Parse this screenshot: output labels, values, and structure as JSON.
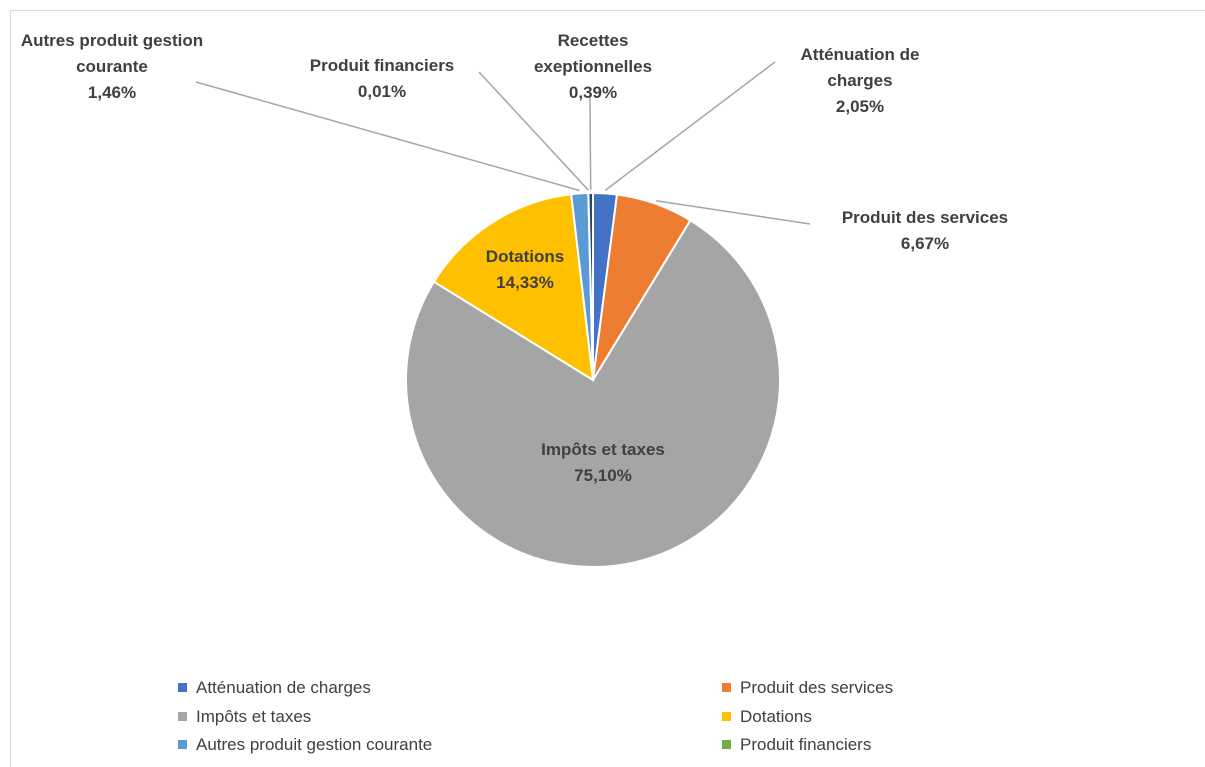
{
  "chart_data": {
    "type": "pie",
    "categories": [
      "Atténuation de charges",
      "Produit des services",
      "Impôts et taxes",
      "Dotations",
      "Autres produit gestion courante",
      "Produit financiers",
      "Recettes exeptionnelles"
    ],
    "values": [
      2.05,
      6.67,
      75.1,
      14.33,
      1.46,
      0.01,
      0.39
    ],
    "value_labels": [
      "2,05%",
      "6,67%",
      "75,10%",
      "14,33%",
      "1,46%",
      "0,01%",
      "0,39%"
    ],
    "colors": [
      "#4472c4",
      "#ed7d31",
      "#a5a5a5",
      "#ffc000",
      "#5b9bd5",
      "#70ad47",
      "#264478"
    ],
    "legend": "bottom"
  }
}
